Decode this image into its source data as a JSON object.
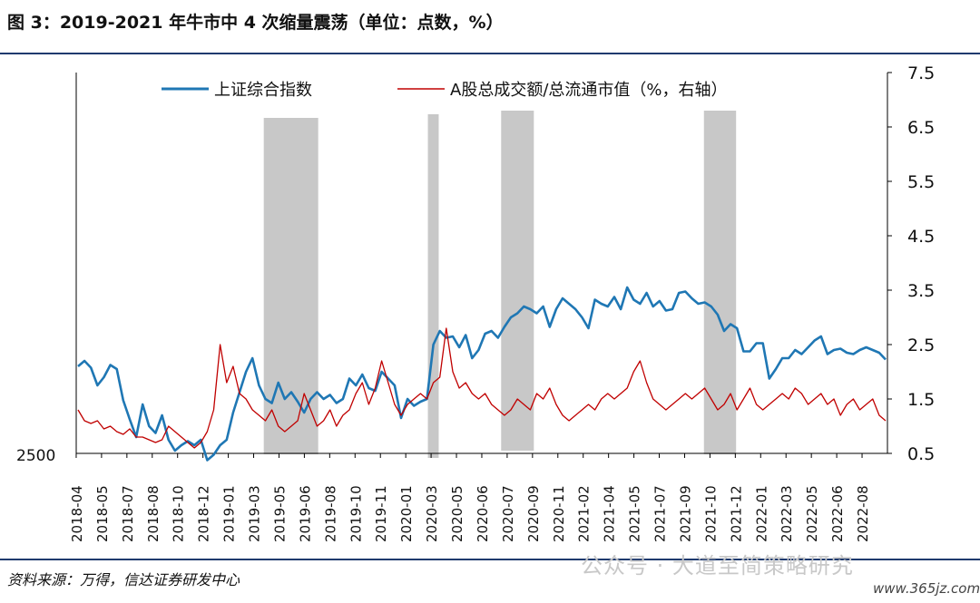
{
  "header": {
    "title": "图 3：2019-2021 年牛市中 4 次缩量震荡（单位：点数，%）"
  },
  "footer": {
    "source": "资料来源：万得，信达证券研发中心",
    "watermark": "公众号 · 大道至简策略研究",
    "site": "www.365jz.com"
  },
  "chart_data": {
    "type": "line",
    "title": "图 3：2019-2021 年牛市中 4 次缩量震荡（单位：点数，%）",
    "x_labels": [
      "2018-04",
      "2018-05",
      "2018-07",
      "2018-08",
      "2018-10",
      "2018-12",
      "2019-01",
      "2019-03",
      "2019-05",
      "2019-06",
      "2019-08",
      "2019-10",
      "2019-11",
      "2020-01",
      "2020-03",
      "2020-05",
      "2020-06",
      "2020-07",
      "2020-09",
      "2020-11",
      "2021-02",
      "2021-04",
      "2021-05",
      "2021-07",
      "2021-09",
      "2021-10",
      "2021-12",
      "2022-01",
      "2022-03",
      "2022-05",
      "2022-06",
      "2022-08"
    ],
    "left_axis": {
      "min_label": "2500",
      "min": 2500,
      "max": 5300
    },
    "right_axis": {
      "ticks": [
        "0.5",
        "1.5",
        "2.5",
        "3.5",
        "4.5",
        "5.5",
        "6.5",
        "7.5"
      ],
      "min": 0.5,
      "max": 7.5
    },
    "legend": [
      "上证综合指数",
      "A股总成交额/总流通市值（%，右轴）"
    ],
    "series": [
      {
        "name": "上证综合指数",
        "color": "#1f77b4",
        "axis": "left",
        "values": [
          3140,
          3180,
          3130,
          3000,
          3060,
          3150,
          3120,
          2890,
          2750,
          2620,
          2860,
          2700,
          2650,
          2780,
          2600,
          2520,
          2560,
          2590,
          2560,
          2600,
          2450,
          2490,
          2560,
          2600,
          2800,
          2950,
          3100,
          3200,
          3000,
          2900,
          2870,
          3020,
          2900,
          2950,
          2880,
          2800,
          2900,
          2950,
          2900,
          2930,
          2870,
          2900,
          3050,
          3000,
          3080,
          2980,
          2960,
          3100,
          3050,
          3000,
          2760,
          2900,
          2850,
          2880,
          2900,
          3300,
          3400,
          3350,
          3360,
          3280,
          3370,
          3200,
          3260,
          3380,
          3400,
          3350,
          3430,
          3500,
          3530,
          3580,
          3560,
          3530,
          3580,
          3430,
          3560,
          3640,
          3600,
          3560,
          3500,
          3420,
          3630,
          3600,
          3580,
          3650,
          3560,
          3720,
          3630,
          3600,
          3680,
          3580,
          3620,
          3550,
          3560,
          3680,
          3690,
          3640,
          3600,
          3610,
          3580,
          3520,
          3400,
          3450,
          3420,
          3250,
          3250,
          3310,
          3310,
          3050,
          3120,
          3200,
          3200,
          3260,
          3230,
          3280,
          3330,
          3360,
          3230,
          3260,
          3270,
          3240,
          3230,
          3260,
          3280,
          3260,
          3240,
          3190
        ]
      },
      {
        "name": "A股总成交额/总流通市值（%，右轴）",
        "color": "#c00000",
        "axis": "right",
        "values": [
          1.3,
          1.1,
          1.05,
          1.1,
          0.95,
          1.0,
          0.9,
          0.85,
          0.95,
          0.8,
          0.8,
          0.75,
          0.7,
          0.75,
          1.0,
          0.9,
          0.8,
          0.7,
          0.6,
          0.7,
          0.9,
          1.3,
          2.5,
          1.8,
          2.1,
          1.6,
          1.5,
          1.3,
          1.2,
          1.1,
          1.3,
          1.0,
          0.9,
          1.0,
          1.1,
          1.6,
          1.3,
          1.0,
          1.1,
          1.3,
          1.0,
          1.2,
          1.3,
          1.6,
          1.8,
          1.4,
          1.7,
          2.2,
          1.8,
          1.4,
          1.2,
          1.4,
          1.5,
          1.6,
          1.5,
          1.8,
          1.9,
          2.8,
          2.0,
          1.7,
          1.8,
          1.6,
          1.5,
          1.6,
          1.4,
          1.3,
          1.2,
          1.3,
          1.5,
          1.4,
          1.3,
          1.6,
          1.5,
          1.7,
          1.4,
          1.2,
          1.1,
          1.2,
          1.3,
          1.4,
          1.3,
          1.5,
          1.6,
          1.5,
          1.6,
          1.7,
          2.0,
          2.2,
          1.8,
          1.5,
          1.4,
          1.3,
          1.4,
          1.5,
          1.6,
          1.5,
          1.6,
          1.7,
          1.5,
          1.3,
          1.4,
          1.6,
          1.3,
          1.5,
          1.7,
          1.4,
          1.3,
          1.4,
          1.5,
          1.6,
          1.5,
          1.7,
          1.6,
          1.4,
          1.5,
          1.6,
          1.4,
          1.5,
          1.2,
          1.4,
          1.5,
          1.3,
          1.4,
          1.5,
          1.2,
          1.1
        ]
      }
    ],
    "shaded_periods": [
      {
        "label": "2019-05 to 2019-08",
        "start": 0.2312,
        "end": 0.2983
      },
      {
        "label": "2020-03",
        "start": 0.4335,
        "end": 0.4468
      },
      {
        "label": "2020-07",
        "start": 0.5238,
        "end": 0.5641
      },
      {
        "label": "2021-09 to 2021-10",
        "start": 0.7738,
        "end": 0.8134
      }
    ]
  }
}
